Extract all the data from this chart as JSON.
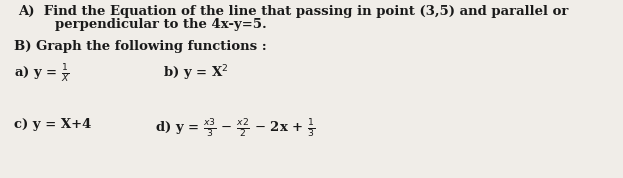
{
  "background_color": "#f0ede8",
  "text_color": "#1a1a1a",
  "line1": "A)  Find the Equation of the line that passing in point (3,5) and parallel or",
  "line2": "        perpendicular to the 4x-y=5.",
  "line3": "B) Graph the following functions :",
  "item_a_label": "a) y =",
  "item_a_math": "$\\frac{1}{X}$",
  "item_b_label": "b) y = X",
  "item_b_sup": "2",
  "item_c": "c) y = X+4",
  "item_d_label": "d) y =",
  "item_d_math": "$\\frac{x3}{3}$ $-$ $\\frac{x2}{2}$ $-$ 2x + $\\frac{1}{3}$",
  "fontsize": 9.5
}
